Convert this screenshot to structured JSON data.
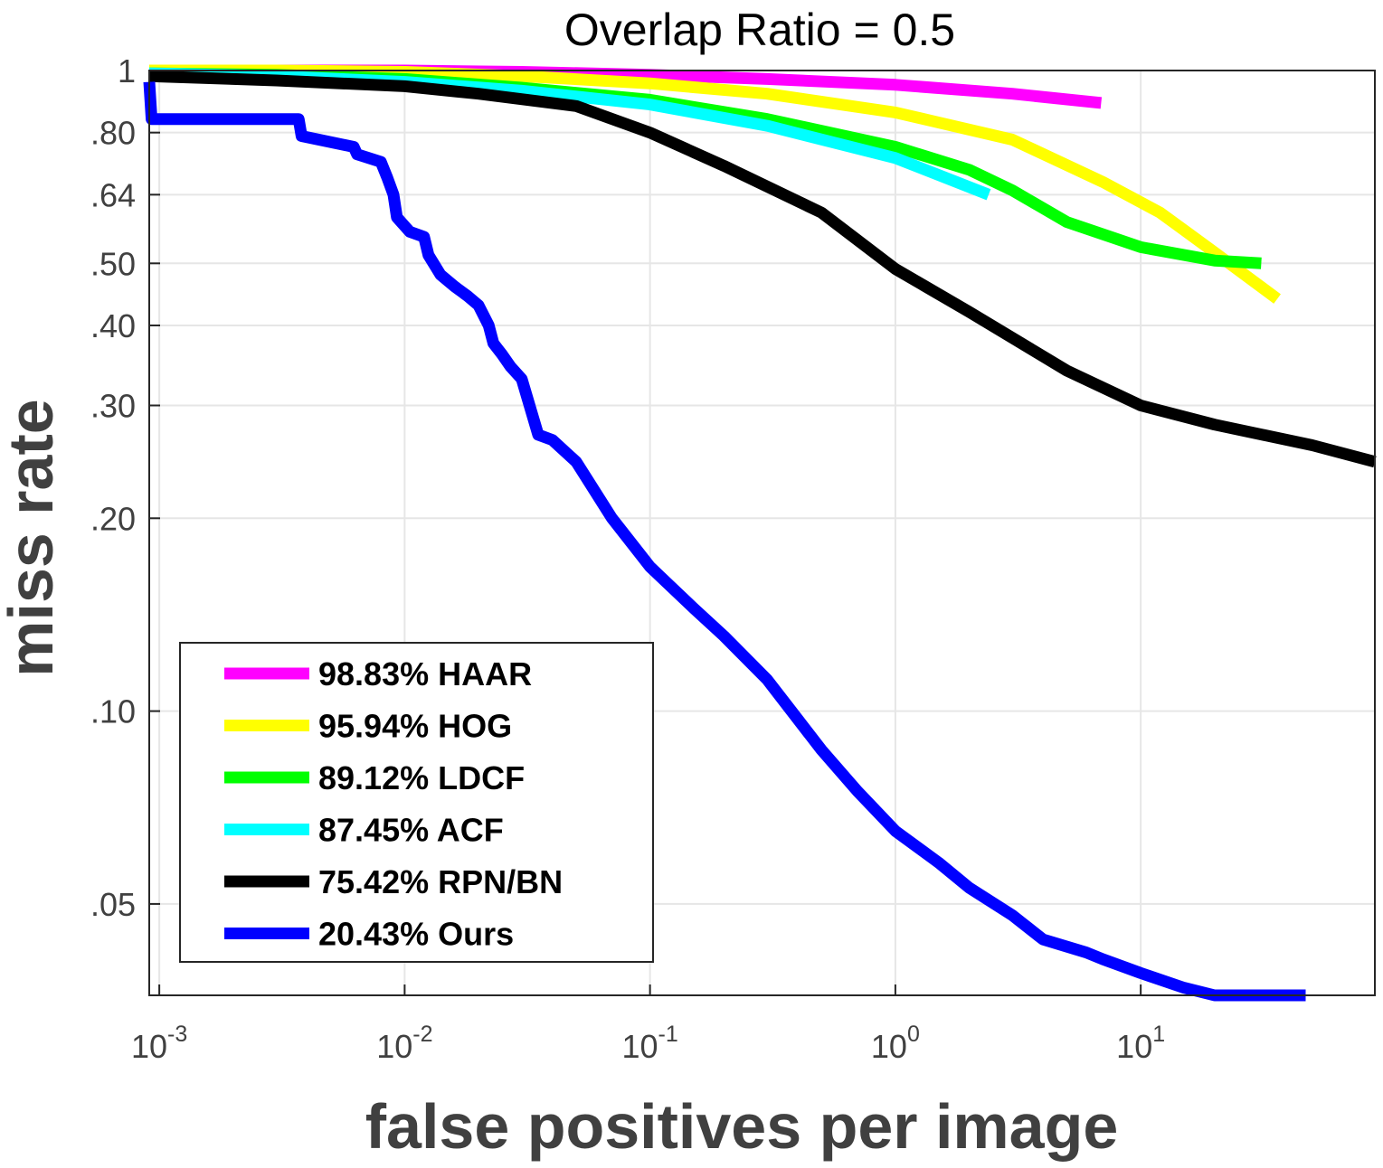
{
  "chart_data": {
    "type": "line",
    "title": "Overlap Ratio = 0.5",
    "xlabel": "false positives per image",
    "ylabel": "miss rate",
    "xscale": "log",
    "yscale": "log",
    "xlim": [
      0.00091,
      90
    ],
    "ylim": [
      0.036,
      1
    ],
    "grid": true,
    "legend_position": "bottom-left",
    "x_ticks": [
      {
        "value": 0.001,
        "base": "10",
        "exp": "-3"
      },
      {
        "value": 0.01,
        "base": "10",
        "exp": "-2"
      },
      {
        "value": 0.1,
        "base": "10",
        "exp": "-1"
      },
      {
        "value": 1,
        "base": "10",
        "exp": "0"
      },
      {
        "value": 10,
        "base": "10",
        "exp": "1"
      }
    ],
    "y_ticks": [
      {
        "value": 1,
        "label": "1"
      },
      {
        "value": 0.8,
        "label": ".80"
      },
      {
        "value": 0.64,
        "label": ".64"
      },
      {
        "value": 0.5,
        "label": ".50"
      },
      {
        "value": 0.4,
        "label": ".40"
      },
      {
        "value": 0.3,
        "label": ".30"
      },
      {
        "value": 0.2,
        "label": ".20"
      },
      {
        "value": 0.1,
        "label": ".10"
      },
      {
        "value": 0.05,
        "label": ".05"
      }
    ],
    "series": [
      {
        "name": "HAAR",
        "legend": "98.83% HAAR",
        "color": "#ff00ff",
        "x": [
          0.00091,
          0.003,
          0.01,
          0.03,
          0.1,
          0.3,
          1,
          3,
          6.9
        ],
        "y": [
          1.0,
          1.0,
          1.0,
          0.995,
          0.985,
          0.97,
          0.95,
          0.92,
          0.89
        ]
      },
      {
        "name": "HOG",
        "legend": "95.94% HOG",
        "color": "#ffff00",
        "x": [
          0.00091,
          0.003,
          0.01,
          0.03,
          0.1,
          0.3,
          1,
          3,
          7,
          12,
          20,
          36
        ],
        "y": [
          1.0,
          1.0,
          0.995,
          0.98,
          0.955,
          0.92,
          0.86,
          0.78,
          0.67,
          0.6,
          0.52,
          0.44
        ]
      },
      {
        "name": "LDCF",
        "legend": "89.12% LDCF",
        "color": "#00ff00",
        "x": [
          0.00091,
          0.003,
          0.01,
          0.03,
          0.1,
          0.3,
          1,
          2,
          3,
          5,
          10,
          20,
          31
        ],
        "y": [
          0.99,
          0.985,
          0.97,
          0.94,
          0.9,
          0.84,
          0.76,
          0.7,
          0.65,
          0.58,
          0.53,
          0.505,
          0.5
        ]
      },
      {
        "name": "ACF",
        "legend": "87.45% ACF",
        "color": "#00ffff",
        "x": [
          0.00091,
          0.003,
          0.01,
          0.03,
          0.1,
          0.3,
          1,
          2.4
        ],
        "y": [
          0.99,
          0.98,
          0.96,
          0.93,
          0.885,
          0.82,
          0.73,
          0.64
        ]
      },
      {
        "name": "RPN/BN",
        "legend": "75.42% RPN/BN",
        "color": "#000000",
        "x": [
          0.00091,
          0.003,
          0.01,
          0.02,
          0.05,
          0.1,
          0.2,
          0.5,
          1,
          2,
          5,
          10,
          20,
          50,
          90
        ],
        "y": [
          0.98,
          0.965,
          0.945,
          0.92,
          0.88,
          0.8,
          0.71,
          0.6,
          0.49,
          0.42,
          0.34,
          0.3,
          0.28,
          0.26,
          0.245
        ]
      },
      {
        "name": "Ours",
        "legend": "20.43% Ours",
        "color": "#0000ff",
        "x": [
          0.00091,
          0.00093,
          0.0037,
          0.0038,
          0.0062,
          0.0064,
          0.008,
          0.0085,
          0.009,
          0.0093,
          0.0105,
          0.012,
          0.0125,
          0.014,
          0.016,
          0.018,
          0.02,
          0.022,
          0.023,
          0.025,
          0.027,
          0.03,
          0.035,
          0.04,
          0.05,
          0.07,
          0.1,
          0.15,
          0.2,
          0.3,
          0.5,
          0.7,
          1,
          1.5,
          2,
          3,
          4,
          6,
          7,
          10,
          15,
          20,
          30,
          47
        ],
        "y": [
          0.96,
          0.84,
          0.84,
          0.79,
          0.76,
          0.74,
          0.72,
          0.68,
          0.64,
          0.59,
          0.56,
          0.55,
          0.515,
          0.48,
          0.46,
          0.445,
          0.43,
          0.4,
          0.375,
          0.36,
          0.345,
          0.33,
          0.27,
          0.265,
          0.245,
          0.2,
          0.168,
          0.145,
          0.131,
          0.112,
          0.087,
          0.075,
          0.065,
          0.058,
          0.053,
          0.048,
          0.044,
          0.042,
          0.041,
          0.039,
          0.037,
          0.036,
          0.036,
          0.036
        ]
      }
    ]
  }
}
